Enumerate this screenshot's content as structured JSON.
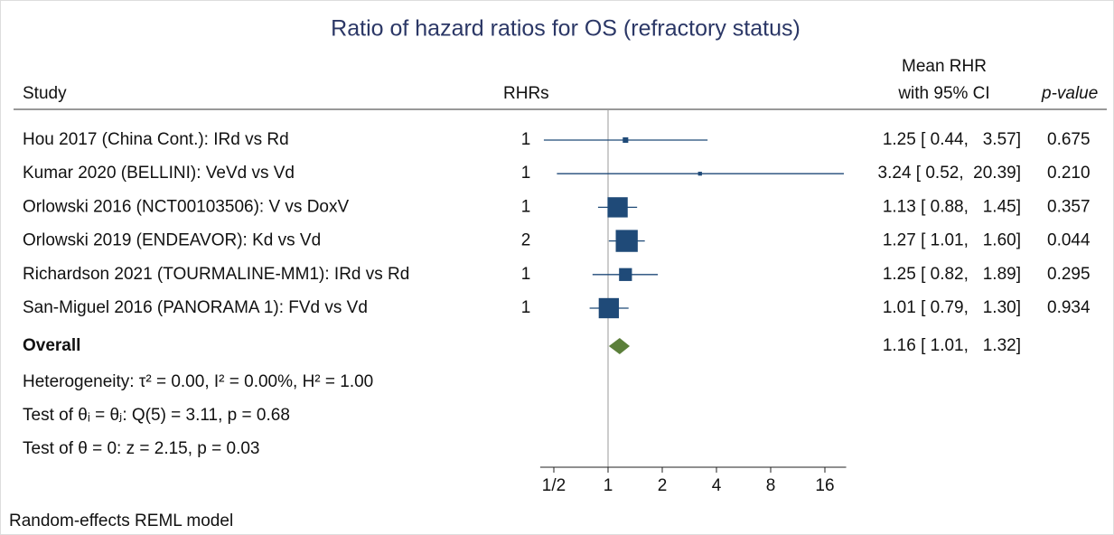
{
  "chart_data": {
    "type": "forest",
    "title": "Ratio of hazard ratios for OS (refractory status)",
    "headers": {
      "study": "Study",
      "rhrs": "RHRs",
      "mean_line1": "Mean RHR",
      "mean_line2": "with 95% CI",
      "p_value": "p-value"
    },
    "color": "#1f4a78",
    "overall_color": "#5b7f3a",
    "studies": [
      {
        "name": "Hou 2017 (China Cont.): IRd vs Rd",
        "rhrs": 1,
        "mean": 1.25,
        "low": 0.44,
        "high": 3.57,
        "weight": 2,
        "ci_label": "1.25 [ 0.44,   3.57]",
        "p_value": 0.675
      },
      {
        "name": "Kumar 2020 (BELLINI): VeVd vs Vd",
        "rhrs": 1,
        "mean": 3.24,
        "low": 0.52,
        "high": 20.39,
        "weight": 1,
        "ci_label": "3.24 [ 0.52,  20.39]",
        "p_value": {
          "value": 0.21,
          "label": "0.210"
        }
      },
      {
        "name": "Orlowski 2016 (NCT00103506): V vs DoxV",
        "rhrs": 1,
        "mean": 1.13,
        "low": 0.88,
        "high": 1.45,
        "weight": 27,
        "ci_label": "1.13 [ 0.88,   1.45]",
        "p_value": 0.357
      },
      {
        "name": "Orlowski 2019 (ENDEAVOR): Kd vs Vd",
        "rhrs": 2,
        "mean": 1.27,
        "low": 1.01,
        "high": 1.6,
        "weight": 32,
        "ci_label": "1.27 [ 1.01,   1.60]",
        "p_value": 0.044
      },
      {
        "name": "Richardson 2021 (TOURMALINE-MM1): IRd vs Rd",
        "rhrs": 1,
        "mean": 1.25,
        "low": 0.82,
        "high": 1.89,
        "weight": 11,
        "ci_label": "1.25 [ 0.82,   1.89]",
        "p_value": 0.295
      },
      {
        "name": "San-Miguel 2016 (PANORAMA 1): FVd vs Vd",
        "rhrs": 1,
        "mean": 1.01,
        "low": 0.79,
        "high": 1.3,
        "weight": 27,
        "ci_label": "1.01 [ 0.79,   1.30]",
        "p_value": 0.934
      }
    ],
    "overall": {
      "name": "Overall",
      "mean": 1.16,
      "low": 1.01,
      "high": 1.32,
      "ci_label": "1.16 [ 1.01,   1.32]"
    },
    "stats": [
      "Heterogeneity: τ² = 0.00, I² = 0.00%, H² = 1.00",
      "Test of θᵢ = θⱼ: Q(5) = 3.11, p = 0.68",
      "Test of θ = 0: z = 2.15, p = 0.03"
    ],
    "footnote": "Random-effects REML model",
    "log_scale": true,
    "xlim": [
      0.42,
      21
    ],
    "xticks": [
      {
        "value": 0.5,
        "label": "1/2"
      },
      1,
      2,
      4,
      8,
      16
    ],
    "reference_line": 1
  }
}
